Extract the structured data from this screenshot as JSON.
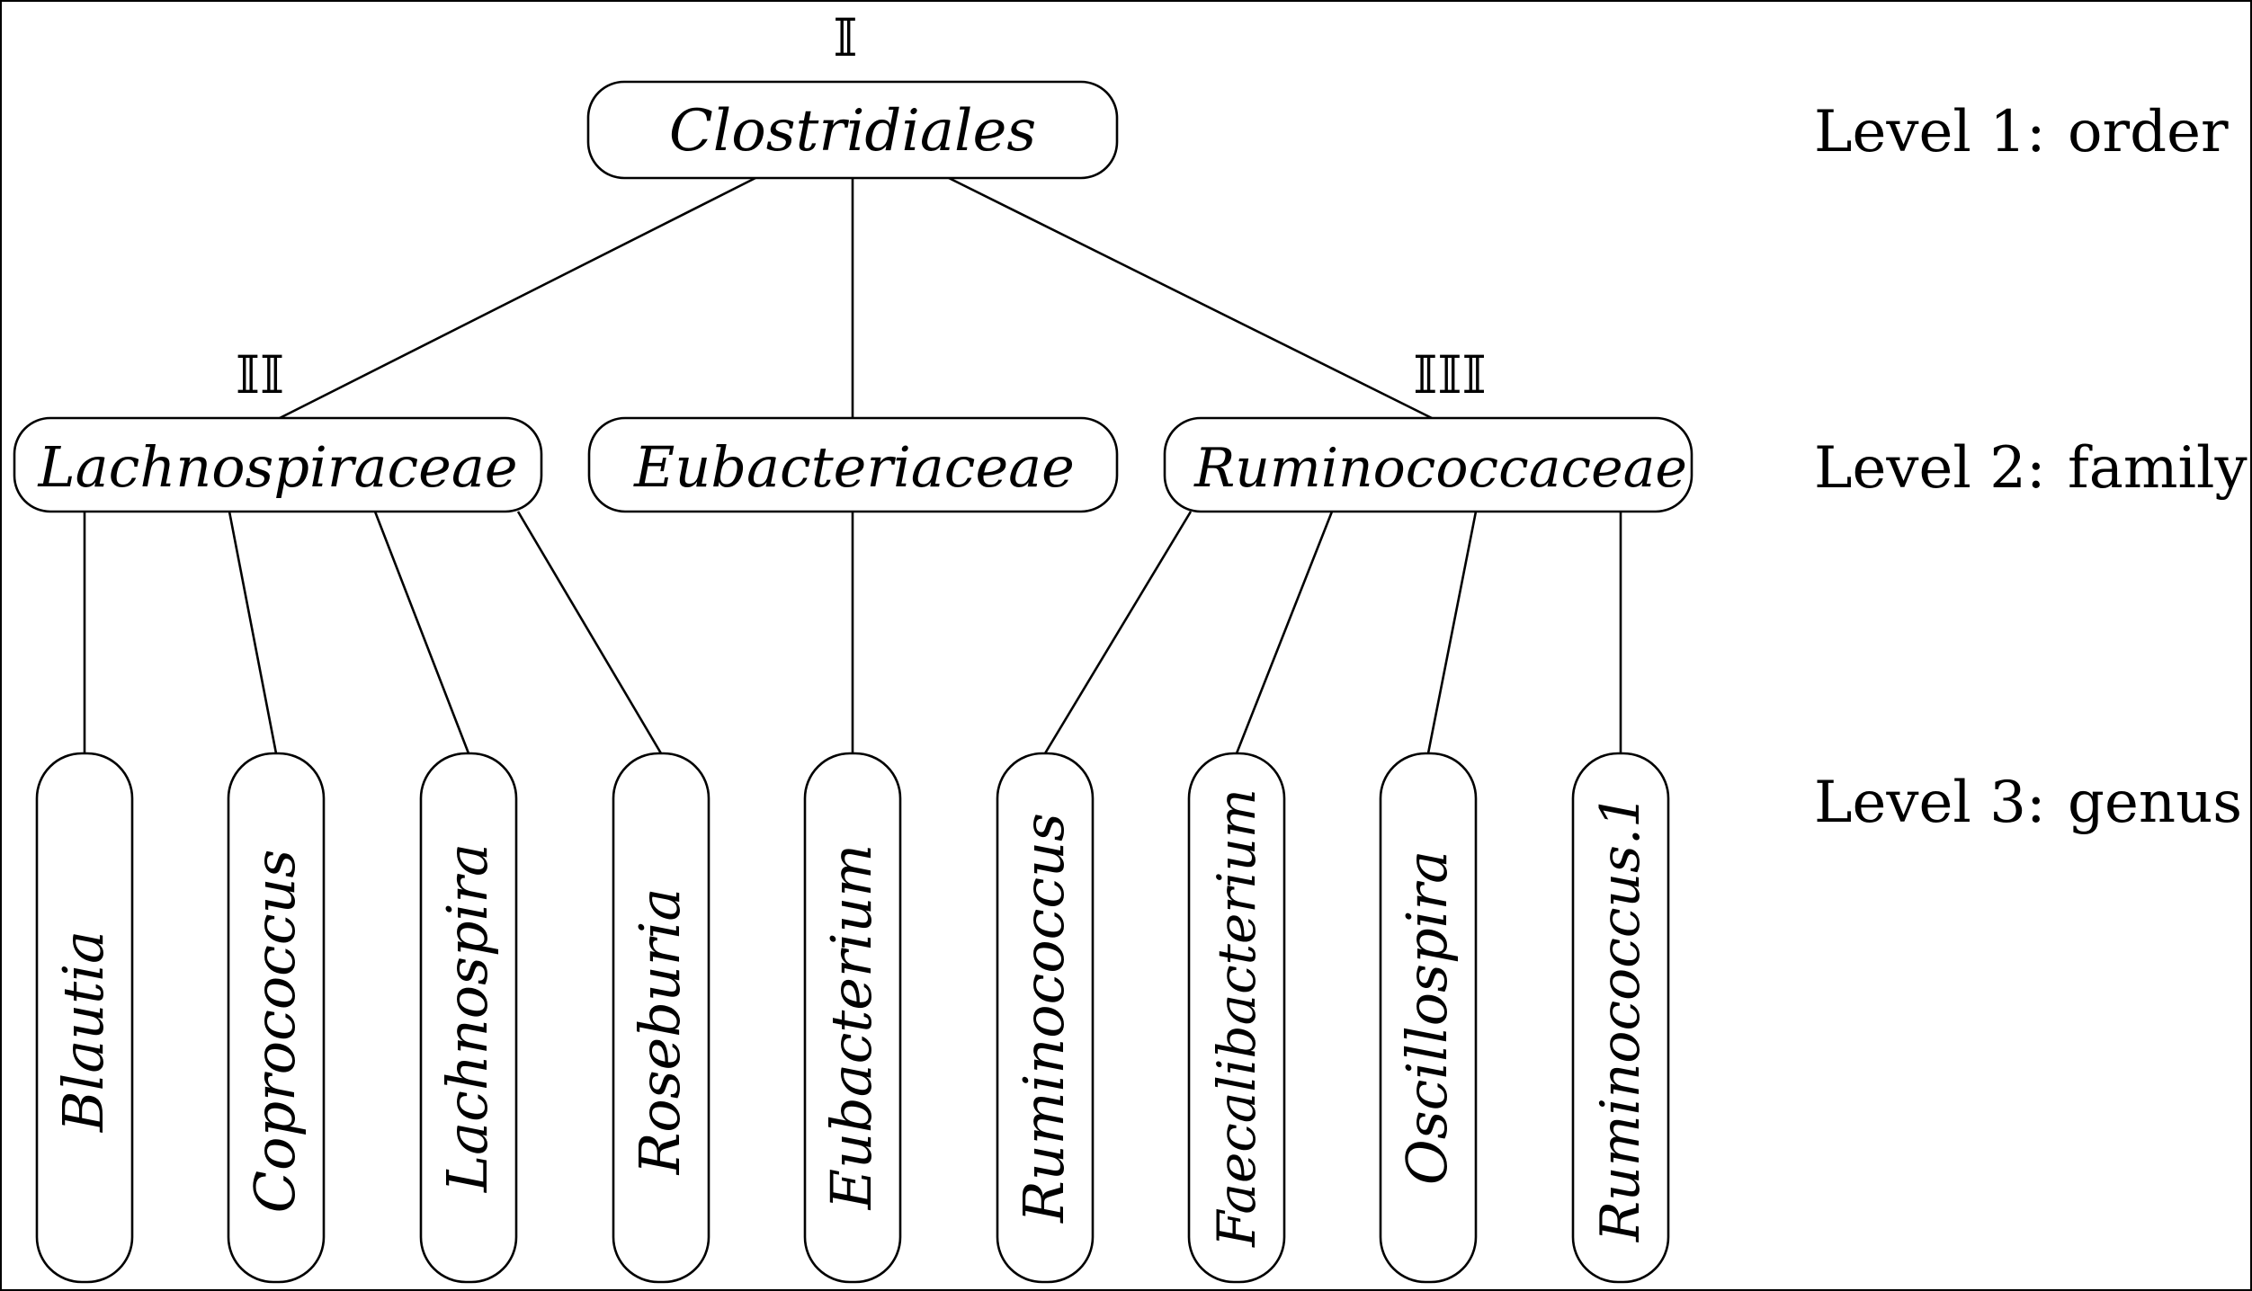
{
  "tree": {
    "order": {
      "name": "Clostridiales",
      "mark": "𝕀"
    },
    "families": [
      {
        "name": "Lachnospiraceae",
        "mark": "𝕀𝕀"
      },
      {
        "name": "Eubacteriaceae",
        "mark": ""
      },
      {
        "name": "Ruminococcaceae",
        "mark": "𝕀𝕀𝕀"
      }
    ],
    "genera": [
      {
        "name": "Blautia",
        "family": 0
      },
      {
        "name": "Coprococcus",
        "family": 0
      },
      {
        "name": "Lachnospira",
        "family": 0
      },
      {
        "name": "Roseburia",
        "family": 0
      },
      {
        "name": "Eubacterium",
        "family": 1
      },
      {
        "name": "Ruminococcus",
        "family": 2
      },
      {
        "name": "Faecalibacterium",
        "family": 2
      },
      {
        "name": "Oscillospira",
        "family": 2
      },
      {
        "name": "Ruminococcus.1",
        "family": 2
      }
    ]
  },
  "levels": [
    {
      "label": "Level 1:",
      "rank": "order"
    },
    {
      "label": "Level 2:",
      "rank": "family"
    },
    {
      "label": "Level 3:",
      "rank": "genus"
    }
  ]
}
